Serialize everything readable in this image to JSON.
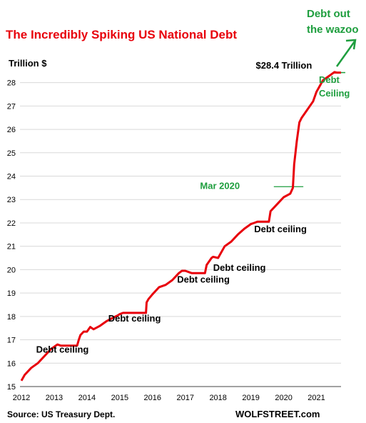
{
  "chart_data": {
    "type": "line",
    "title": "The Incredibly Spiking US National Debt",
    "ylabel": "Trillion $",
    "xlabel": "",
    "ylim": [
      15,
      28.6
    ],
    "xlim": [
      2012,
      2021.75
    ],
    "x_ticks": [
      "2012",
      "2013",
      "2014",
      "2015",
      "2016",
      "2017",
      "2018",
      "2019",
      "2020",
      "2021"
    ],
    "y_ticks": [
      "15",
      "16",
      "17",
      "18",
      "19",
      "20",
      "21",
      "22",
      "23",
      "24",
      "25",
      "26",
      "27",
      "28"
    ],
    "grid": "horizontal",
    "series": [
      {
        "color": "#e8000b",
        "x": [
          2012.0,
          2012.1,
          2012.3,
          2012.5,
          2012.7,
          2012.9,
          2013.0,
          2013.1,
          2013.2,
          2013.3,
          2013.7,
          2013.75,
          2013.8,
          2013.9,
          2014.0,
          2014.1,
          2014.2,
          2014.4,
          2014.6,
          2014.8,
          2014.95,
          2015.0,
          2015.1,
          2015.2,
          2015.8,
          2015.82,
          2015.88,
          2016.0,
          2016.2,
          2016.4,
          2016.6,
          2016.8,
          2016.9,
          2017.0,
          2017.2,
          2017.6,
          2017.65,
          2017.8,
          2017.85,
          2018.0,
          2018.2,
          2018.4,
          2018.6,
          2018.8,
          2019.0,
          2019.1,
          2019.2,
          2019.55,
          2019.6,
          2019.8,
          2020.0,
          2020.2,
          2020.28,
          2020.32,
          2020.4,
          2020.48,
          2020.55,
          2020.7,
          2020.9,
          2021.0,
          2021.1,
          2021.2,
          2021.35,
          2021.45,
          2021.55,
          2021.62,
          2021.65,
          2021.75
        ],
        "y": [
          15.25,
          15.5,
          15.8,
          16.0,
          16.3,
          16.6,
          16.7,
          16.8,
          16.75,
          16.75,
          16.75,
          17.0,
          17.2,
          17.35,
          17.35,
          17.55,
          17.45,
          17.6,
          17.8,
          17.95,
          18.05,
          18.1,
          18.15,
          18.15,
          18.15,
          18.6,
          18.75,
          18.95,
          19.25,
          19.35,
          19.55,
          19.85,
          19.95,
          19.95,
          19.85,
          19.85,
          20.2,
          20.5,
          20.55,
          20.5,
          21.0,
          21.2,
          21.5,
          21.75,
          21.95,
          22.0,
          22.05,
          22.05,
          22.5,
          22.8,
          23.1,
          23.25,
          23.5,
          24.5,
          25.5,
          26.3,
          26.5,
          26.8,
          27.2,
          27.6,
          27.85,
          28.1,
          28.25,
          28.35,
          28.45,
          28.43,
          28.43,
          28.43
        ]
      }
    ],
    "annotations": [
      {
        "text": "Debt ceiling",
        "x": 2012.45,
        "y": 16.45,
        "color": "#000000"
      },
      {
        "text": "Debt ceiling",
        "x": 2014.65,
        "y": 17.78,
        "color": "#000000"
      },
      {
        "text": "Debt ceiling",
        "x": 2016.75,
        "y": 19.45,
        "color": "#000000"
      },
      {
        "text": "Debt ceiling",
        "x": 2017.85,
        "y": 19.95,
        "color": "#000000"
      },
      {
        "text": "Debt ceiling",
        "x": 2019.1,
        "y": 21.6,
        "color": "#000000"
      },
      {
        "text": "$28.4 Trillion",
        "x": 2019.15,
        "y": 28.6,
        "color": "#000000"
      },
      {
        "text": "Mar 2020",
        "x": 2017.45,
        "y": 23.45,
        "color": "#1e9e3e"
      }
    ],
    "green_labels": {
      "debt_ceiling_line1": "Debt",
      "debt_ceiling_line2": "Ceiling",
      "wazoo_line1": "Debt out",
      "wazoo_line2": "the wazoo"
    },
    "source": "Source: US Treasury Dept.",
    "credit": "WOLFSTREET.com"
  }
}
